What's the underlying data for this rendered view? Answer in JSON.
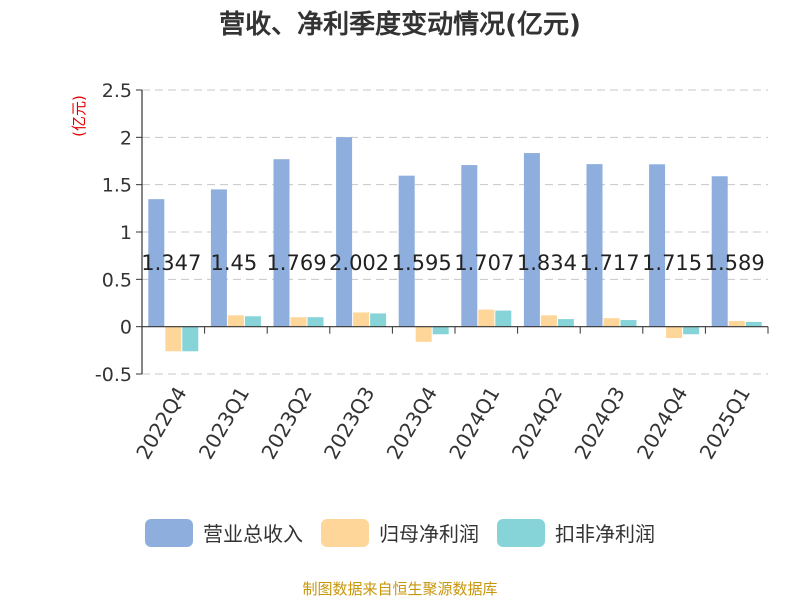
{
  "chart_data": {
    "type": "bar",
    "title": "营收、净利季度变动情况(亿元)",
    "ylabel": "(亿元)",
    "xlabel": "",
    "ylim": [
      -0.5,
      2.5
    ],
    "yticks": [
      -0.5,
      0,
      0.5,
      1,
      1.5,
      2,
      2.5
    ],
    "ytick_labels": [
      "-0.5",
      "0",
      "0.5",
      "1",
      "1.5",
      "2",
      "2.5"
    ],
    "grid": true,
    "legend_position": "bottom",
    "categories": [
      "2022Q4",
      "2023Q1",
      "2023Q2",
      "2023Q3",
      "2023Q4",
      "2024Q1",
      "2024Q2",
      "2024Q3",
      "2024Q4",
      "2025Q1"
    ],
    "series": [
      {
        "name": "营业总收入",
        "color": "#8eaedd",
        "values": [
          1.347,
          1.45,
          1.769,
          2.002,
          1.595,
          1.707,
          1.834,
          1.717,
          1.715,
          1.589
        ],
        "labels": [
          "1.347",
          "1.45",
          "1.769",
          "2.002",
          "1.595",
          "1.707",
          "1.834",
          "1.717",
          "1.715",
          "1.589"
        ]
      },
      {
        "name": "归母净利润",
        "color": "#ffd699",
        "values": [
          -0.26,
          0.12,
          0.1,
          0.15,
          -0.16,
          0.18,
          0.12,
          0.09,
          -0.12,
          0.06
        ]
      },
      {
        "name": "扣非净利润",
        "color": "#86d4d8",
        "values": [
          -0.26,
          0.11,
          0.1,
          0.14,
          -0.08,
          0.17,
          0.08,
          0.07,
          -0.08,
          0.05
        ]
      }
    ]
  },
  "source": "制图数据来自恒生聚源数据库"
}
